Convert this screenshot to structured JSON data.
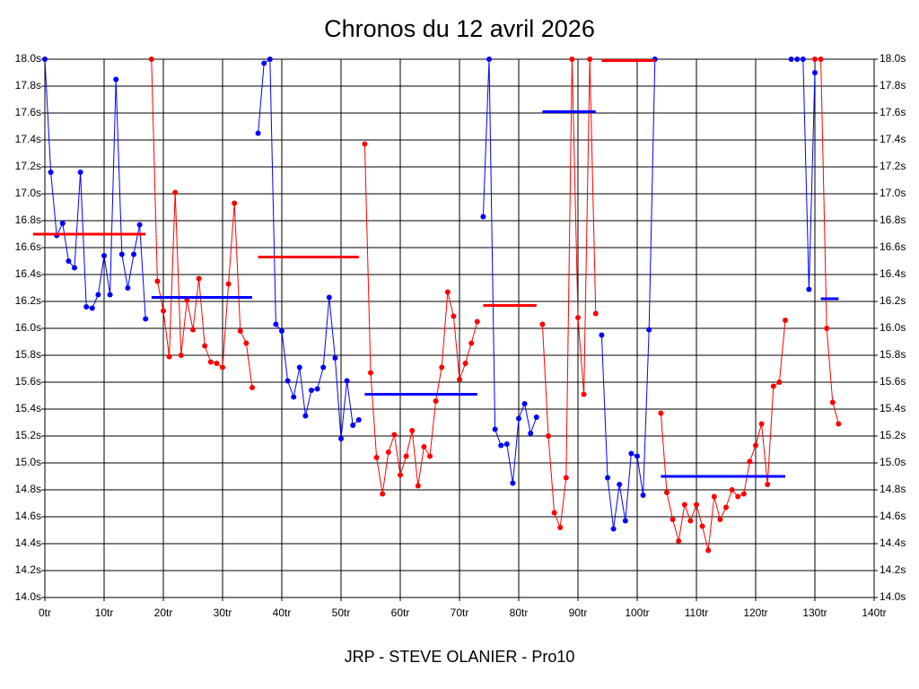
{
  "chart_data": {
    "type": "line",
    "title": "Chronos du 12 avril 2026",
    "footer": "JRP - STEVE OLANIER - Pro10",
    "x": [
      0,
      1,
      2,
      3,
      4,
      5,
      6,
      7,
      8,
      9,
      10,
      11,
      12,
      13,
      14,
      15,
      16,
      17,
      18,
      19,
      20,
      21,
      22,
      23,
      24,
      25,
      26,
      27,
      28,
      29,
      30,
      31,
      32,
      33,
      34,
      35,
      36,
      37,
      38,
      39,
      40,
      41,
      42,
      43,
      44,
      45,
      46,
      47,
      48,
      49,
      50,
      51,
      52,
      53,
      54,
      55,
      56,
      57,
      58,
      59,
      60,
      61,
      62,
      63,
      64,
      65,
      66,
      67,
      68,
      69,
      70,
      71,
      72,
      73,
      74,
      75,
      76,
      77,
      78,
      79,
      80,
      81,
      82,
      83,
      84,
      85,
      86,
      87,
      88,
      89,
      90,
      91,
      92,
      93,
      94,
      95,
      96,
      97,
      98,
      99,
      100,
      101,
      102,
      103,
      104,
      105,
      106,
      107,
      108,
      109,
      110,
      111,
      112,
      113,
      114,
      115,
      116,
      117,
      118,
      119,
      120,
      121,
      122,
      123,
      124,
      125,
      126,
      127,
      128,
      129,
      130,
      131,
      132,
      133,
      134
    ],
    "series": [
      {
        "color": "#0000ff",
        "values": [
          18.0,
          17.16,
          16.69,
          16.78,
          16.5,
          16.45,
          17.16,
          16.16,
          16.15,
          16.25,
          16.54,
          16.25,
          17.85,
          16.55,
          16.3,
          16.55,
          16.77,
          16.07,
          null,
          null,
          null,
          null,
          null,
          null,
          null,
          null,
          null,
          null,
          null,
          null,
          null,
          null,
          null,
          null,
          null,
          null,
          17.45,
          17.97,
          18.0,
          16.03,
          15.98,
          15.61,
          15.49,
          15.71,
          15.35,
          15.54,
          15.55,
          15.71,
          16.23,
          15.78,
          15.18,
          15.61,
          15.28,
          15.32,
          null,
          null,
          null,
          null,
          null,
          null,
          null,
          null,
          null,
          null,
          null,
          null,
          null,
          null,
          null,
          null,
          null,
          null,
          null,
          null,
          16.83,
          18.0,
          15.25,
          15.13,
          15.14,
          14.85,
          15.33,
          15.44,
          15.22,
          15.34,
          null,
          null,
          null,
          null,
          null,
          null,
          null,
          null,
          null,
          null,
          15.95,
          14.89,
          14.51,
          14.84,
          14.57,
          15.07,
          15.05,
          14.76,
          15.99,
          18.0,
          null,
          null,
          null,
          null,
          null,
          null,
          null,
          null,
          null,
          null,
          null,
          null,
          null,
          null,
          null,
          null,
          null,
          null,
          null,
          null,
          null,
          null,
          18.0,
          18.0,
          18.0,
          16.29,
          17.9,
          null,
          null,
          null,
          null
        ]
      },
      {
        "color": "#ff0000",
        "values": [
          null,
          null,
          null,
          null,
          null,
          null,
          null,
          null,
          null,
          null,
          null,
          null,
          null,
          null,
          null,
          null,
          null,
          null,
          18.0,
          16.35,
          16.13,
          15.79,
          17.01,
          15.8,
          16.21,
          15.99,
          16.37,
          15.87,
          15.75,
          15.74,
          15.71,
          16.33,
          16.93,
          15.98,
          15.89,
          15.56,
          null,
          null,
          null,
          null,
          null,
          null,
          null,
          null,
          null,
          null,
          null,
          null,
          null,
          null,
          null,
          null,
          null,
          null,
          17.37,
          15.67,
          15.04,
          14.77,
          15.08,
          15.21,
          14.91,
          15.05,
          15.24,
          14.83,
          15.12,
          15.05,
          15.46,
          15.71,
          16.27,
          16.09,
          15.62,
          15.74,
          15.89,
          16.05,
          null,
          null,
          null,
          null,
          null,
          null,
          null,
          null,
          null,
          null,
          16.03,
          15.2,
          14.63,
          14.52,
          14.89,
          18.0,
          16.08,
          15.51,
          18.0,
          16.11,
          null,
          null,
          null,
          null,
          null,
          null,
          null,
          null,
          null,
          null,
          15.37,
          14.78,
          14.58,
          14.42,
          14.69,
          14.57,
          14.69,
          14.53,
          14.35,
          14.75,
          14.58,
          14.67,
          14.8,
          14.75,
          14.77,
          15.01,
          15.13,
          15.29,
          14.84,
          15.57,
          15.6,
          16.06,
          null,
          null,
          null,
          null,
          18.0,
          18.0,
          16.0,
          15.45,
          15.29
        ]
      }
    ],
    "segments": [
      {
        "color": "#ff0000",
        "x": [
          -2,
          17
        ],
        "value": 16.7
      },
      {
        "color": "#0000ff",
        "x": [
          18,
          35
        ],
        "value": 16.23
      },
      {
        "color": "#ff0000",
        "x": [
          36,
          53
        ],
        "value": 16.53
      },
      {
        "color": "#0000ff",
        "x": [
          54,
          73
        ],
        "value": 15.51
      },
      {
        "color": "#ff0000",
        "x": [
          74,
          83
        ],
        "value": 16.17
      },
      {
        "color": "#0000ff",
        "x": [
          84,
          93
        ],
        "value": 17.61
      },
      {
        "color": "#ff0000",
        "x": [
          94,
          103
        ],
        "value": 17.99
      },
      {
        "color": "#0000ff",
        "x": [
          104,
          125
        ],
        "value": 14.9
      },
      {
        "color": "#0000ff",
        "x": [
          131,
          134
        ],
        "value": 16.22
      }
    ],
    "xlim": [
      0,
      140
    ],
    "xticks": [
      {
        "value": 0,
        "label": "0tr"
      },
      {
        "value": 10,
        "label": "10tr"
      },
      {
        "value": 20,
        "label": "20tr"
      },
      {
        "value": 30,
        "label": "30tr"
      },
      {
        "value": 40,
        "label": "40tr"
      },
      {
        "value": 50,
        "label": "50tr"
      },
      {
        "value": 60,
        "label": "60tr"
      },
      {
        "value": 70,
        "label": "70tr"
      },
      {
        "value": 80,
        "label": "80tr"
      },
      {
        "value": 90,
        "label": "90tr"
      },
      {
        "value": 100,
        "label": "100tr"
      },
      {
        "value": 110,
        "label": "110tr"
      },
      {
        "value": 120,
        "label": "120tr"
      },
      {
        "value": 130,
        "label": "130tr"
      },
      {
        "value": 140,
        "label": "140tr"
      }
    ],
    "ylim": [
      14.0,
      18.0
    ],
    "yticks": [
      {
        "value": 14.0,
        "label": "14.0s"
      },
      {
        "value": 14.2,
        "label": "14.2s"
      },
      {
        "value": 14.4,
        "label": "14.4s"
      },
      {
        "value": 14.6,
        "label": "14.6s"
      },
      {
        "value": 14.8,
        "label": "14.8s"
      },
      {
        "value": 15.0,
        "label": "15.0s"
      },
      {
        "value": 15.2,
        "label": "15.2s"
      },
      {
        "value": 15.4,
        "label": "15.4s"
      },
      {
        "value": 15.6,
        "label": "15.6s"
      },
      {
        "value": 15.8,
        "label": "15.8s"
      },
      {
        "value": 16.0,
        "label": "16.0s"
      },
      {
        "value": 16.2,
        "label": "16.2s"
      },
      {
        "value": 16.4,
        "label": "16.4s"
      },
      {
        "value": 16.6,
        "label": "16.6s"
      },
      {
        "value": 16.8,
        "label": "16.8s"
      },
      {
        "value": 17.0,
        "label": "17.0s"
      },
      {
        "value": 17.2,
        "label": "17.2s"
      },
      {
        "value": 17.4,
        "label": "17.4s"
      },
      {
        "value": 17.6,
        "label": "17.6s"
      },
      {
        "value": 17.8,
        "label": "17.8s"
      },
      {
        "value": 18.0,
        "label": "18.0s"
      }
    ],
    "grid": true
  }
}
